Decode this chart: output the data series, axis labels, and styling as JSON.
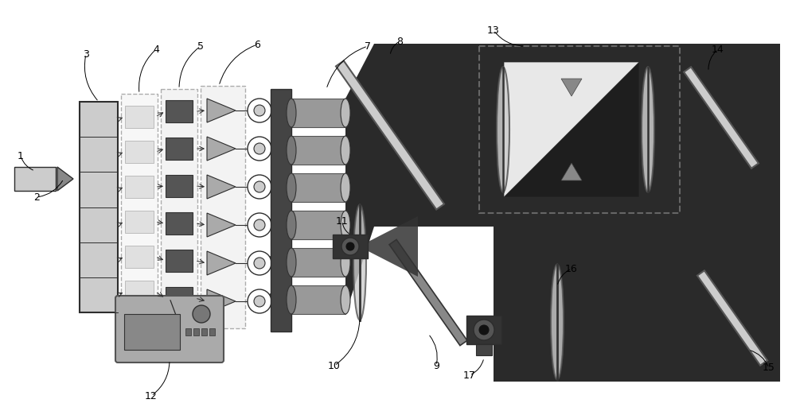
{
  "bg": "#ffffff",
  "dark": "#2d2d2d",
  "gray1": "#888888",
  "gray2": "#aaaaaa",
  "gray3": "#cccccc",
  "gray4": "#dddddd",
  "gray5": "#eeeeee",
  "black": "#111111",
  "figw": 10.0,
  "figh": 5.17,
  "dpi": 100
}
